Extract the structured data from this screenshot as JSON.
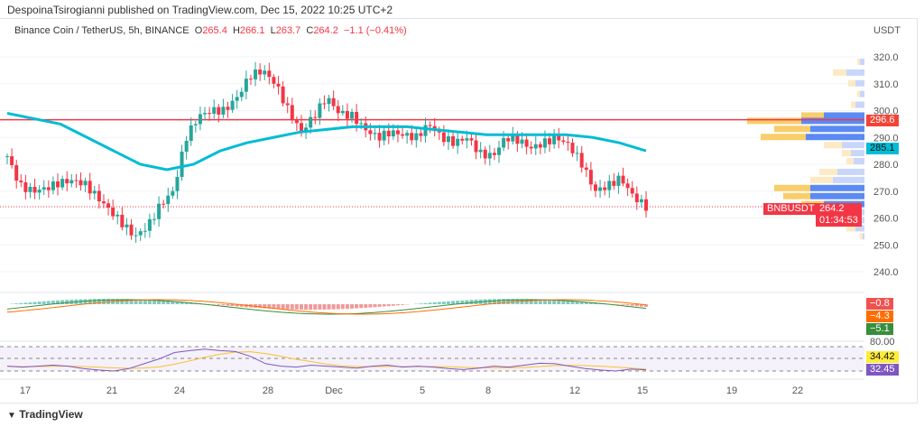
{
  "header": {
    "published": "DespoinaTsirogianni published on TradingView.com, Dec 15, 2022 10:25 UTC+2"
  },
  "legend": {
    "symbol": "Binance Coin / TetherUS, 5h, BINANCE",
    "o_label": "O",
    "o": "265.4",
    "h_label": "H",
    "h": "266.1",
    "l_label": "L",
    "l": "263.7",
    "c_label": "C",
    "c": "264.2",
    "change": "−1.1 (−0.41%)"
  },
  "tags": {
    "resistance": "296.6",
    "sma": "285.1",
    "symbol": "BNBUSDT",
    "price": "264.2",
    "countdown": "01:34:53",
    "macd1": "−0.8",
    "macd2": "−4.3",
    "macd3": "−5.1",
    "rsi_level": "80.00",
    "rsi_ma": "34.42",
    "rsi": "32.45"
  },
  "footer": {
    "brand": "TradingView"
  },
  "colors": {
    "up": "#26a69a",
    "down": "#f23645",
    "sma": "#00bcd4",
    "resistance": "#f23645"
  },
  "chart_data": {
    "type": "candlestick",
    "currency": "USDT",
    "yticks": [
      "320.0",
      "310.0",
      "300.0",
      "290.0",
      "280.0",
      "270.0",
      "260.0",
      "250.0",
      "240.0"
    ],
    "ylim": [
      240,
      320
    ],
    "xticks": [
      "17",
      "21",
      "24",
      "28",
      "Dec",
      "5",
      "8",
      "12",
      "15",
      "19",
      "22"
    ],
    "close_path": [
      283,
      272,
      270,
      271,
      273,
      274,
      273,
      268,
      263,
      258,
      253,
      257,
      265,
      270,
      290,
      298,
      300,
      300,
      305,
      313,
      315,
      310,
      300,
      292,
      298,
      305,
      299,
      298,
      293,
      290,
      292,
      291,
      290,
      295,
      290,
      288,
      290,
      284,
      283,
      290,
      289,
      286,
      288,
      290,
      287,
      280,
      270,
      272,
      275,
      268,
      264.2
    ],
    "sma_path": [
      299,
      297,
      295,
      290,
      285,
      280,
      278,
      280,
      285,
      288,
      290,
      292,
      293,
      294,
      294,
      294,
      293,
      292,
      291,
      291,
      291,
      291,
      290,
      288,
      285
    ],
    "resistance": 296.6,
    "last": 264.2,
    "volume_profile": [
      [
        318,
        3,
        5
      ],
      [
        314,
        15,
        20
      ],
      [
        310,
        8,
        10
      ],
      [
        306,
        3,
        5
      ],
      [
        302,
        5,
        10
      ],
      [
        298,
        25,
        45
      ],
      [
        296,
        60,
        70
      ],
      [
        293,
        40,
        60
      ],
      [
        290,
        50,
        65
      ],
      [
        287,
        20,
        25
      ],
      [
        284,
        10,
        15
      ],
      [
        281,
        8,
        12
      ],
      [
        277,
        20,
        30
      ],
      [
        274,
        25,
        35
      ],
      [
        271,
        40,
        60
      ],
      [
        268,
        30,
        60
      ],
      [
        265,
        25,
        45
      ],
      [
        262,
        10,
        15
      ],
      [
        259,
        15,
        20
      ],
      [
        256,
        10,
        10
      ],
      [
        253,
        3,
        2
      ]
    ],
    "rsi_path": [
      40,
      38,
      40,
      42,
      40,
      35,
      32,
      30,
      35,
      45,
      55,
      68,
      72,
      75,
      72,
      70,
      60,
      45,
      40,
      38,
      42,
      40,
      38,
      36,
      40,
      42,
      38,
      40,
      38,
      35,
      33,
      36,
      40,
      38,
      42,
      46,
      45,
      40,
      35,
      32,
      30,
      34,
      32.45
    ]
  }
}
